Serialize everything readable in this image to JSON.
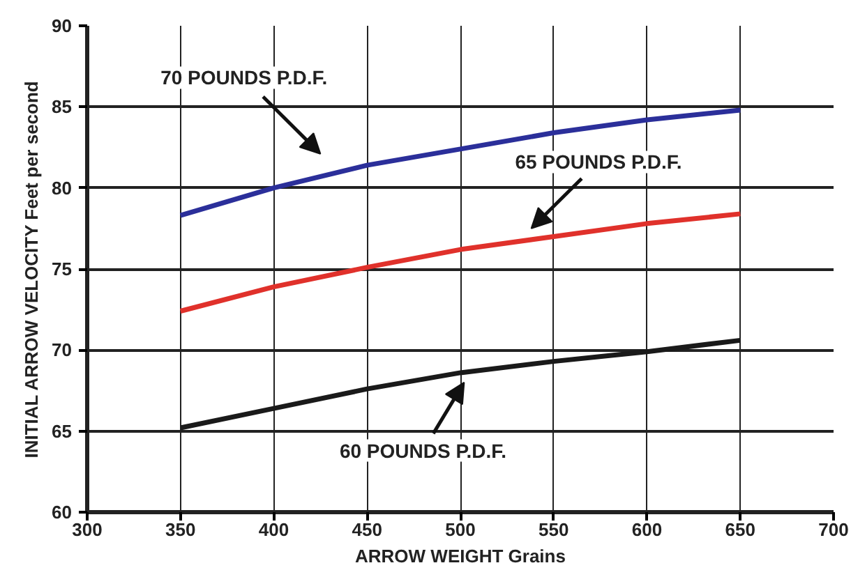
{
  "chart_data": {
    "type": "line",
    "xlabel": "ARROW WEIGHT Grains",
    "ylabel": "INITIAL ARROW VELOCITY Feet per second",
    "x": [
      350,
      400,
      450,
      500,
      550,
      600,
      650
    ],
    "series": [
      {
        "color": "#2b2f9a",
        "values": [
          78.3,
          80.0,
          81.4,
          82.4,
          83.4,
          84.2,
          84.8
        ]
      },
      {
        "color": "#e0312b",
        "values": [
          72.4,
          73.9,
          75.1,
          76.2,
          77.0,
          77.8,
          78.4
        ]
      },
      {
        "color": "#1a1a1a",
        "values": [
          65.2,
          66.4,
          67.6,
          68.6,
          69.3,
          69.9,
          70.6
        ]
      }
    ],
    "annotations": [
      "70 POUNDS P.D.F.",
      "65 POUNDS P.D.F.",
      "60 POUNDS P.D.F."
    ],
    "xlim": [
      300,
      700
    ],
    "ylim": [
      60,
      90
    ],
    "xticks": [
      300,
      350,
      400,
      450,
      500,
      550,
      600,
      650,
      700
    ],
    "yticks": [
      60,
      65,
      70,
      75,
      80,
      85,
      90
    ],
    "grid": true,
    "marker": "none",
    "line_style": "solid"
  }
}
